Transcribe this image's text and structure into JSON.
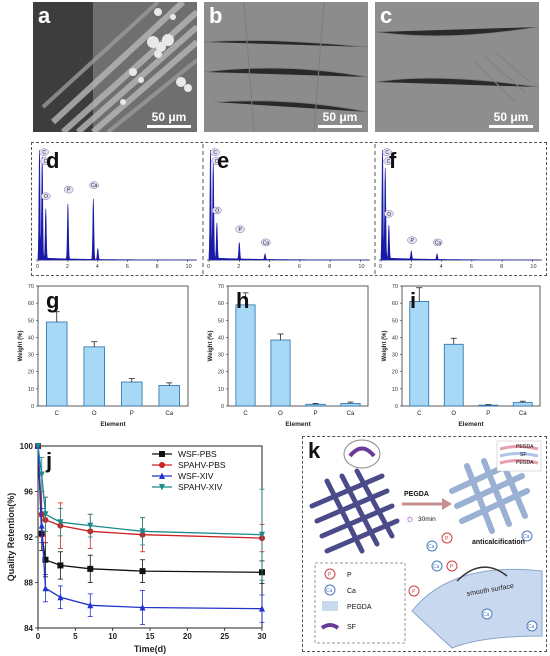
{
  "sem_panels": [
    {
      "label": "a",
      "scale": "50 μm"
    },
    {
      "label": "b",
      "scale": "50 μm"
    },
    {
      "label": "c",
      "scale": "50 μm"
    }
  ],
  "eds_panels": [
    {
      "label": "d",
      "peaks": [
        "C",
        "O",
        "P",
        "Ca"
      ],
      "x_ticks": [
        "0",
        "2",
        "4",
        "6",
        "8",
        "10"
      ]
    },
    {
      "label": "e",
      "peaks": [
        "C",
        "O",
        "P",
        "Ca"
      ],
      "x_ticks": [
        "0",
        "2",
        "4",
        "6",
        "8",
        "10"
      ]
    },
    {
      "label": "f",
      "peaks": [
        "C",
        "O",
        "P",
        "Ca"
      ],
      "x_ticks": [
        "0",
        "2",
        "4",
        "6",
        "8",
        "10"
      ]
    }
  ],
  "chart_data": [
    {
      "label": "g",
      "type": "bar",
      "categories": [
        "C",
        "O",
        "P",
        "Ca"
      ],
      "values": [
        49,
        34.5,
        14,
        12
      ],
      "errors": [
        6,
        3,
        2,
        1.5
      ],
      "ylabel": "Weight (%)",
      "xlabel": "Element",
      "ylim": [
        0,
        70
      ],
      "yticks": [
        0,
        10,
        20,
        30,
        40,
        50,
        60,
        70
      ]
    },
    {
      "label": "h",
      "type": "bar",
      "categories": [
        "C",
        "O",
        "P",
        "Ca"
      ],
      "values": [
        59,
        38.5,
        1,
        1.5
      ],
      "errors": [
        7,
        3.5,
        0.5,
        0.8
      ],
      "ylabel": "Weight (%)",
      "xlabel": "Element",
      "ylim": [
        0,
        70
      ],
      "yticks": [
        0,
        10,
        20,
        30,
        40,
        50,
        60,
        70
      ]
    },
    {
      "label": "i",
      "type": "bar",
      "categories": [
        "C",
        "O",
        "P",
        "Ca"
      ],
      "values": [
        61,
        36,
        0.5,
        2
      ],
      "errors": [
        8,
        3.5,
        0.3,
        0.8
      ],
      "ylabel": "Weight (%)",
      "xlabel": "Element",
      "ylim": [
        0,
        70
      ],
      "yticks": [
        0,
        10,
        20,
        30,
        40,
        50,
        60,
        70
      ]
    },
    {
      "label": "j",
      "type": "line",
      "x": [
        0,
        0.5,
        1,
        3,
        7,
        14,
        30
      ],
      "xlabel": "Time(d)",
      "ylabel": "Quality Retention(%)",
      "xlim": [
        0,
        30
      ],
      "ylim": [
        84,
        100
      ],
      "xticks": [
        0,
        5,
        10,
        15,
        20,
        25,
        30
      ],
      "yticks": [
        84,
        88,
        92,
        96,
        100
      ],
      "series": [
        {
          "name": "WSF-PBS",
          "color": "#111111",
          "marker": "square",
          "values": [
            100,
            92.3,
            90.0,
            89.5,
            89.2,
            89.0,
            88.9
          ],
          "errors": [
            0,
            1.5,
            1.5,
            1.2,
            1.2,
            1.0,
            1.0
          ]
        },
        {
          "name": "SPAHV-PBS",
          "color": "#cc2222",
          "marker": "circle",
          "values": [
            100,
            94.0,
            93.5,
            93.0,
            92.5,
            92.2,
            91.9
          ],
          "errors": [
            0,
            2.0,
            2.0,
            2.0,
            1.5,
            1.5,
            1.2
          ]
        },
        {
          "name": "WSF-XIV",
          "color": "#2233cc",
          "marker": "triangle",
          "values": [
            100,
            93.0,
            87.5,
            86.7,
            86.0,
            85.8,
            85.7
          ],
          "errors": [
            0,
            1.5,
            1.2,
            1.0,
            1.0,
            1.5,
            1.2
          ]
        },
        {
          "name": "SPAHV-XIV",
          "color": "#1a8a8a",
          "marker": "triangle-down",
          "values": [
            100,
            97.5,
            94.0,
            93.3,
            93.0,
            92.5,
            92.2
          ],
          "errors": [
            0,
            1.5,
            1.5,
            1.2,
            1.0,
            1.2,
            4.0
          ]
        }
      ]
    }
  ],
  "schematic": {
    "label": "k",
    "pegda_arrow": "PEGDA",
    "time": "30min",
    "anticalcification": "anticalcification",
    "smooth_surface": "smooth surface",
    "layers": [
      "PEGDA",
      "SF",
      "PEGDA"
    ],
    "legend": [
      {
        "symbol": "P",
        "text": "P"
      },
      {
        "symbol": "Ca",
        "text": "Ca"
      },
      {
        "symbol": "",
        "text": "PEGDA"
      },
      {
        "symbol": "",
        "text": "SF"
      }
    ],
    "ion_p": "P",
    "ion_ca": "Ca"
  },
  "colors": {
    "bar": "#a7d8f5",
    "bar_edge": "#2a6fa8",
    "eds": "#1a1aa8"
  }
}
